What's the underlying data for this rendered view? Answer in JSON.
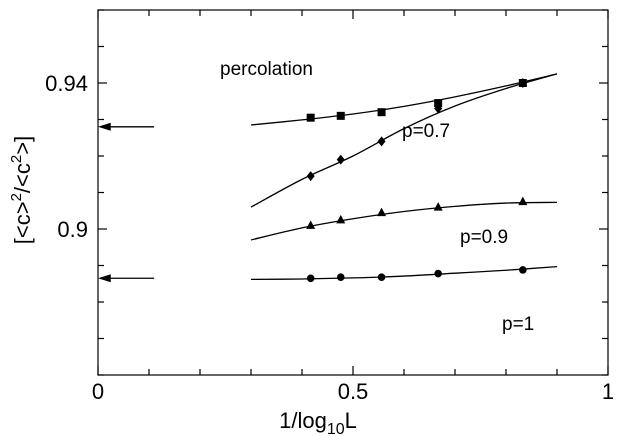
{
  "chart_data": {
    "type": "scatter",
    "xlabel": "1/log10L",
    "ylabel": "[<c>2/<c2>]",
    "xlim": [
      0,
      1
    ],
    "ylim": [
      0.86,
      0.96
    ],
    "xticks": [
      0,
      0.5,
      1
    ],
    "xtick_labels": [
      "0",
      "0.5",
      "1"
    ],
    "yticks": [
      0.9,
      0.94
    ],
    "ytick_labels": [
      "0.9",
      "0.94"
    ],
    "grid": false,
    "series": [
      {
        "name": "percolation",
        "marker": "square",
        "points": [
          [
            0.417,
            0.9305
          ],
          [
            0.476,
            0.931
          ],
          [
            0.556,
            0.932
          ],
          [
            0.667,
            0.9345
          ],
          [
            0.833,
            0.94
          ]
        ],
        "fit": [
          [
            0.3,
            0.9285
          ],
          [
            0.4,
            0.9299
          ],
          [
            0.5,
            0.9315
          ],
          [
            0.6,
            0.9336
          ],
          [
            0.7,
            0.9362
          ],
          [
            0.8,
            0.9392
          ],
          [
            0.9,
            0.9425
          ]
        ]
      },
      {
        "name": "p=0.7",
        "marker": "diamond",
        "points": [
          [
            0.417,
            0.9145
          ],
          [
            0.476,
            0.919
          ],
          [
            0.556,
            0.924
          ],
          [
            0.667,
            0.933
          ],
          [
            0.833,
            0.94
          ]
        ],
        "fit": [
          [
            0.3,
            0.906
          ],
          [
            0.4,
            0.9136
          ],
          [
            0.5,
            0.92
          ],
          [
            0.6,
            0.9275
          ],
          [
            0.7,
            0.9337
          ],
          [
            0.8,
            0.9385
          ],
          [
            0.9,
            0.9425
          ]
        ]
      },
      {
        "name": "p=0.9",
        "marker": "triangle",
        "points": [
          [
            0.417,
            0.901
          ],
          [
            0.476,
            0.9025
          ],
          [
            0.556,
            0.9045
          ],
          [
            0.667,
            0.906
          ],
          [
            0.833,
            0.9075
          ]
        ],
        "fit": [
          [
            0.3,
            0.897
          ],
          [
            0.4,
            0.9003
          ],
          [
            0.5,
            0.9028
          ],
          [
            0.6,
            0.9048
          ],
          [
            0.7,
            0.9062
          ],
          [
            0.8,
            0.9071
          ],
          [
            0.9,
            0.9073
          ]
        ]
      },
      {
        "name": "p=1",
        "marker": "circle",
        "points": [
          [
            0.417,
            0.8865
          ],
          [
            0.476,
            0.8868
          ],
          [
            0.556,
            0.8868
          ],
          [
            0.667,
            0.8878
          ],
          [
            0.833,
            0.8888
          ]
        ],
        "fit": [
          [
            0.3,
            0.8862
          ],
          [
            0.4,
            0.8863
          ],
          [
            0.5,
            0.8866
          ],
          [
            0.6,
            0.8871
          ],
          [
            0.7,
            0.8879
          ],
          [
            0.8,
            0.8887
          ],
          [
            0.9,
            0.8897
          ]
        ]
      }
    ],
    "arrows": [
      {
        "y": 0.928
      },
      {
        "y": 0.8865
      }
    ]
  }
}
